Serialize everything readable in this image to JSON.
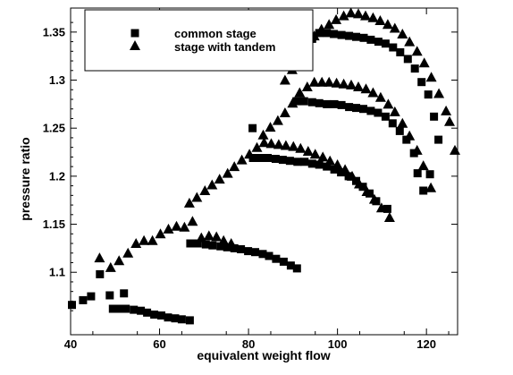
{
  "chart_data": {
    "type": "scatter",
    "title": "",
    "xlabel": "equivalent weight flow",
    "ylabel": "pressure ratio",
    "xlim": [
      40,
      127
    ],
    "ylim": [
      1.035,
      1.375
    ],
    "x_ticks": [
      "40",
      "60",
      "80",
      "100",
      "120"
    ],
    "y_ticks": [
      "1.1",
      "1.15",
      "1.2",
      "1.25",
      "1.3",
      "1.35"
    ],
    "grid": false,
    "legend_position": "top-left",
    "series": [
      {
        "name": "common stage",
        "marker": "square",
        "points": [
          [
            40.3,
            1.066
          ],
          [
            42.8,
            1.071
          ],
          [
            44.6,
            1.075
          ],
          [
            46.6,
            1.098
          ],
          [
            48.8,
            1.076
          ],
          [
            52.0,
            1.078
          ],
          [
            49.5,
            1.062
          ],
          [
            50.9,
            1.062
          ],
          [
            52.4,
            1.062
          ],
          [
            54.2,
            1.061
          ],
          [
            55.8,
            1.06
          ],
          [
            57.2,
            1.058
          ],
          [
            58.8,
            1.056
          ],
          [
            60.4,
            1.055
          ],
          [
            61.9,
            1.053
          ],
          [
            63.5,
            1.052
          ],
          [
            65.0,
            1.051
          ],
          [
            66.8,
            1.05
          ],
          [
            66.9,
            1.13
          ],
          [
            68.6,
            1.13
          ],
          [
            70.4,
            1.129
          ],
          [
            71.9,
            1.128
          ],
          [
            73.7,
            1.127
          ],
          [
            75.2,
            1.126
          ],
          [
            76.8,
            1.125
          ],
          [
            78.3,
            1.124
          ],
          [
            79.9,
            1.122
          ],
          [
            81.5,
            1.121
          ],
          [
            83.2,
            1.119
          ],
          [
            84.6,
            1.117
          ],
          [
            86.2,
            1.114
          ],
          [
            87.9,
            1.111
          ],
          [
            89.5,
            1.107
          ],
          [
            90.9,
            1.104
          ],
          [
            80.9,
            1.25
          ],
          [
            81.0,
            1.219
          ],
          [
            82.6,
            1.219
          ],
          [
            84.3,
            1.219
          ],
          [
            86.1,
            1.218
          ],
          [
            87.7,
            1.217
          ],
          [
            89.3,
            1.216
          ],
          [
            91.0,
            1.215
          ],
          [
            92.6,
            1.215
          ],
          [
            94.3,
            1.213
          ],
          [
            95.9,
            1.212
          ],
          [
            97.6,
            1.21
          ],
          [
            99.3,
            1.207
          ],
          [
            100.8,
            1.204
          ],
          [
            102.5,
            1.2
          ],
          [
            104.2,
            1.195
          ],
          [
            105.7,
            1.189
          ],
          [
            107.2,
            1.182
          ],
          [
            108.7,
            1.174
          ],
          [
            111.2,
            1.166
          ],
          [
            90.8,
            1.278
          ],
          [
            92.5,
            1.278
          ],
          [
            94.3,
            1.277
          ],
          [
            95.9,
            1.276
          ],
          [
            97.6,
            1.275
          ],
          [
            99.3,
            1.275
          ],
          [
            100.9,
            1.274
          ],
          [
            102.6,
            1.272
          ],
          [
            104.2,
            1.271
          ],
          [
            105.8,
            1.27
          ],
          [
            107.5,
            1.268
          ],
          [
            109.1,
            1.266
          ],
          [
            110.8,
            1.262
          ],
          [
            112.4,
            1.255
          ],
          [
            114.0,
            1.247
          ],
          [
            115.5,
            1.238
          ],
          [
            117.2,
            1.224
          ],
          [
            118.0,
            1.203
          ],
          [
            119.3,
            1.185
          ],
          [
            120.8,
            1.202
          ],
          [
            91.3,
            1.34
          ],
          [
            92.6,
            1.35
          ],
          [
            94.3,
            1.343
          ],
          [
            95.9,
            1.349
          ],
          [
            97.6,
            1.349
          ],
          [
            99.2,
            1.348
          ],
          [
            100.9,
            1.347
          ],
          [
            102.6,
            1.346
          ],
          [
            104.2,
            1.345
          ],
          [
            105.9,
            1.344
          ],
          [
            107.5,
            1.342
          ],
          [
            109.2,
            1.34
          ],
          [
            110.8,
            1.338
          ],
          [
            112.5,
            1.334
          ],
          [
            114.1,
            1.329
          ],
          [
            115.8,
            1.322
          ],
          [
            117.4,
            1.312
          ],
          [
            118.9,
            1.298
          ],
          [
            120.4,
            1.285
          ],
          [
            121.7,
            1.262
          ],
          [
            122.7,
            1.238
          ]
        ]
      },
      {
        "name": "stage with tandem",
        "marker": "triangle",
        "points": [
          [
            46.5,
            1.115
          ],
          [
            49.0,
            1.105
          ],
          [
            50.9,
            1.112
          ],
          [
            52.9,
            1.12
          ],
          [
            54.7,
            1.13
          ],
          [
            56.5,
            1.133
          ],
          [
            58.4,
            1.133
          ],
          [
            60.2,
            1.14
          ],
          [
            62.0,
            1.145
          ],
          [
            63.8,
            1.148
          ],
          [
            65.6,
            1.147
          ],
          [
            67.4,
            1.153
          ],
          [
            69.4,
            1.136
          ],
          [
            71.1,
            1.138
          ],
          [
            72.8,
            1.137
          ],
          [
            74.4,
            1.133
          ],
          [
            76.1,
            1.13
          ],
          [
            66.7,
            1.172
          ],
          [
            68.4,
            1.178
          ],
          [
            70.2,
            1.185
          ],
          [
            71.8,
            1.191
          ],
          [
            73.5,
            1.197
          ],
          [
            75.3,
            1.203
          ],
          [
            76.8,
            1.21
          ],
          [
            78.5,
            1.217
          ],
          [
            80.2,
            1.223
          ],
          [
            81.9,
            1.23
          ],
          [
            83.5,
            1.235
          ],
          [
            85.1,
            1.234
          ],
          [
            86.8,
            1.233
          ],
          [
            88.4,
            1.232
          ],
          [
            90.1,
            1.231
          ],
          [
            91.7,
            1.229
          ],
          [
            93.4,
            1.226
          ],
          [
            95.0,
            1.223
          ],
          [
            96.7,
            1.22
          ],
          [
            98.3,
            1.216
          ],
          [
            100.0,
            1.212
          ],
          [
            101.7,
            1.207
          ],
          [
            103.3,
            1.2
          ],
          [
            104.9,
            1.192
          ],
          [
            106.6,
            1.184
          ],
          [
            108.3,
            1.176
          ],
          [
            109.9,
            1.167
          ],
          [
            111.7,
            1.157
          ],
          [
            83.3,
            1.243
          ],
          [
            84.9,
            1.251
          ],
          [
            86.6,
            1.258
          ],
          [
            88.2,
            1.266
          ],
          [
            89.9,
            1.276
          ],
          [
            91.5,
            1.287
          ],
          [
            93.2,
            1.293
          ],
          [
            94.8,
            1.298
          ],
          [
            96.5,
            1.298
          ],
          [
            98.1,
            1.298
          ],
          [
            99.8,
            1.297
          ],
          [
            101.4,
            1.296
          ],
          [
            103.1,
            1.295
          ],
          [
            104.7,
            1.293
          ],
          [
            106.4,
            1.291
          ],
          [
            108.0,
            1.287
          ],
          [
            109.7,
            1.282
          ],
          [
            111.4,
            1.275
          ],
          [
            112.9,
            1.267
          ],
          [
            114.6,
            1.255
          ],
          [
            116.2,
            1.242
          ],
          [
            117.9,
            1.227
          ],
          [
            119.3,
            1.211
          ],
          [
            121.0,
            1.188
          ],
          [
            88.2,
            1.3
          ],
          [
            89.8,
            1.311
          ],
          [
            91.5,
            1.324
          ],
          [
            93.1,
            1.335
          ],
          [
            94.8,
            1.346
          ],
          [
            96.4,
            1.353
          ],
          [
            98.1,
            1.358
          ],
          [
            99.7,
            1.363
          ],
          [
            101.4,
            1.367
          ],
          [
            103.0,
            1.37
          ],
          [
            104.7,
            1.369
          ],
          [
            106.3,
            1.367
          ],
          [
            108.0,
            1.365
          ],
          [
            109.6,
            1.362
          ],
          [
            111.3,
            1.358
          ],
          [
            112.9,
            1.354
          ],
          [
            114.6,
            1.348
          ],
          [
            116.2,
            1.34
          ],
          [
            117.9,
            1.33
          ],
          [
            119.5,
            1.318
          ],
          [
            121.1,
            1.303
          ],
          [
            122.8,
            1.286
          ],
          [
            124.4,
            1.268
          ],
          [
            125.2,
            1.257
          ],
          [
            126.4,
            1.227
          ]
        ]
      }
    ]
  }
}
